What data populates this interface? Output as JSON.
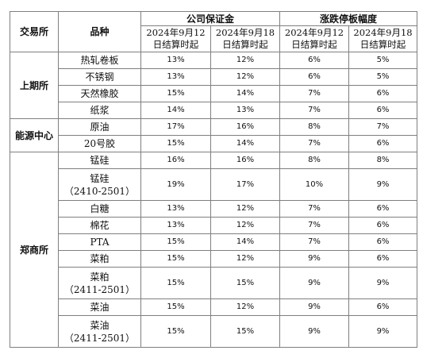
{
  "headers": {
    "exchange": "交易所",
    "product": "品种",
    "margin_group": "公司保证金",
    "limit_group": "涨跌停板幅度",
    "date_sep12": [
      "2024年9月12",
      "日结算时起"
    ],
    "date_sep18": [
      "2024年9月18",
      "日结算时起"
    ]
  },
  "groups": [
    {
      "exchange": "上期所",
      "rows": [
        {
          "product": [
            "热轧卷板"
          ],
          "margin_0912": "13%",
          "margin_0918": "12%",
          "limit_0912": "6%",
          "limit_0918": "5%"
        },
        {
          "product": [
            "不锈钢"
          ],
          "margin_0912": "13%",
          "margin_0918": "12%",
          "limit_0912": "6%",
          "limit_0918": "5%"
        },
        {
          "product": [
            "天然橡胶"
          ],
          "margin_0912": "15%",
          "margin_0918": "14%",
          "limit_0912": "7%",
          "limit_0918": "6%"
        },
        {
          "product": [
            "纸浆"
          ],
          "margin_0912": "14%",
          "margin_0918": "13%",
          "limit_0912": "7%",
          "limit_0918": "6%"
        }
      ]
    },
    {
      "exchange": "能源中心",
      "rows": [
        {
          "product": [
            "原油"
          ],
          "margin_0912": "17%",
          "margin_0918": "16%",
          "limit_0912": "8%",
          "limit_0918": "7%"
        },
        {
          "product": [
            "20号胶"
          ],
          "margin_0912": "15%",
          "margin_0918": "14%",
          "limit_0912": "7%",
          "limit_0918": "6%"
        }
      ]
    },
    {
      "exchange": "郑商所",
      "rows": [
        {
          "product": [
            "锰硅"
          ],
          "margin_0912": "16%",
          "margin_0918": "16%",
          "limit_0912": "8%",
          "limit_0918": "8%"
        },
        {
          "product": [
            "锰硅",
            "（2410-2501）"
          ],
          "margin_0912": "19%",
          "margin_0918": "17%",
          "limit_0912": "10%",
          "limit_0918": "9%"
        },
        {
          "product": [
            "白糖"
          ],
          "margin_0912": "13%",
          "margin_0918": "12%",
          "limit_0912": "7%",
          "limit_0918": "6%"
        },
        {
          "product": [
            "棉花"
          ],
          "margin_0912": "13%",
          "margin_0918": "12%",
          "limit_0912": "7%",
          "limit_0918": "6%"
        },
        {
          "product": [
            "PTA"
          ],
          "margin_0912": "15%",
          "margin_0918": "14%",
          "limit_0912": "7%",
          "limit_0918": "6%"
        },
        {
          "product": [
            "菜粕"
          ],
          "margin_0912": "15%",
          "margin_0918": "12%",
          "limit_0912": "9%",
          "limit_0918": "6%"
        },
        {
          "product": [
            "菜粕",
            "（2411-2501）"
          ],
          "margin_0912": "15%",
          "margin_0918": "15%",
          "limit_0912": "9%",
          "limit_0918": "9%"
        },
        {
          "product": [
            "菜油"
          ],
          "margin_0912": "15%",
          "margin_0918": "12%",
          "limit_0912": "9%",
          "limit_0918": "6%"
        },
        {
          "product": [
            "菜油",
            "（2411-2501）"
          ],
          "margin_0912": "15%",
          "margin_0918": "15%",
          "limit_0912": "9%",
          "limit_0918": "9%"
        }
      ]
    }
  ]
}
